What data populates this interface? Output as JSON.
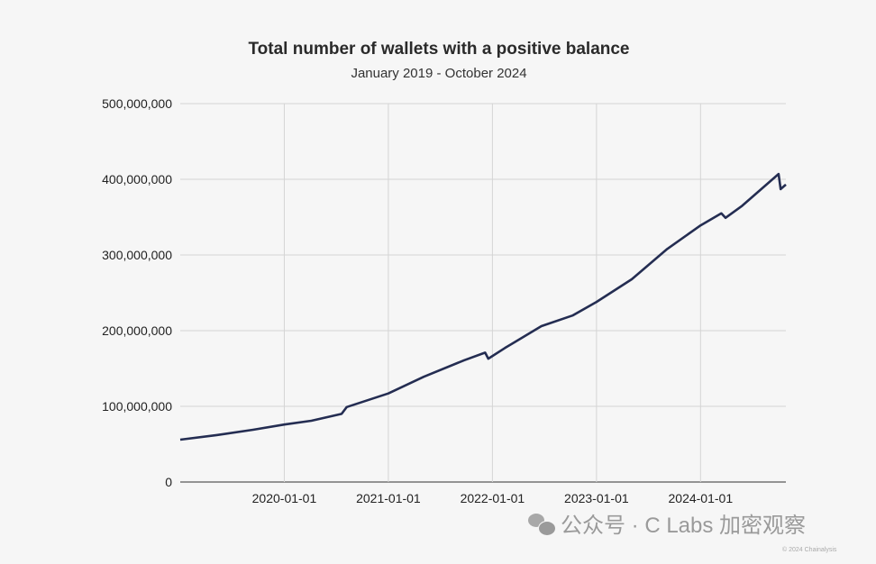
{
  "chart_data": {
    "type": "line",
    "title": "Total number of wallets with a positive balance",
    "subtitle": "January 2019 - October 2024",
    "xlabel": "",
    "ylabel": "",
    "ylim": [
      0,
      500000000
    ],
    "xlim": [
      2019.0,
      2024.82
    ],
    "grid": true,
    "y_ticks": [
      {
        "v": 0,
        "label": "0"
      },
      {
        "v": 100000000,
        "label": "100,000,000"
      },
      {
        "v": 200000000,
        "label": "200,000,000"
      },
      {
        "v": 300000000,
        "label": "300,000,000"
      },
      {
        "v": 400000000,
        "label": "400,000,000"
      },
      {
        "v": 500000000,
        "label": "500,000,000"
      }
    ],
    "x_ticks": [
      {
        "v": 2020.0,
        "label": "2020-01-01"
      },
      {
        "v": 2021.0,
        "label": "2021-01-01"
      },
      {
        "v": 2022.0,
        "label": "2022-01-01"
      },
      {
        "v": 2023.0,
        "label": "2023-01-01"
      },
      {
        "v": 2024.0,
        "label": "2024-01-01"
      }
    ],
    "series": [
      {
        "name": "Wallets with positive balance",
        "color": "#242d52",
        "x": [
          2019.0,
          2019.35,
          2019.7,
          2020.0,
          2020.26,
          2020.55,
          2020.6,
          2021.0,
          2021.34,
          2021.73,
          2021.93,
          2021.96,
          2022.12,
          2022.47,
          2022.77,
          2023.0,
          2023.34,
          2023.68,
          2024.0,
          2024.2,
          2024.24,
          2024.4,
          2024.75,
          2024.77,
          2024.82
        ],
        "y": [
          56000000,
          62000000,
          69000000,
          76000000,
          81000000,
          90000000,
          99000000,
          117000000,
          139000000,
          161000000,
          171000000,
          163000000,
          177000000,
          206000000,
          220000000,
          238000000,
          268000000,
          308000000,
          339000000,
          355000000,
          349000000,
          365000000,
          407000000,
          387000000,
          393000000
        ]
      }
    ]
  },
  "watermark": {
    "text": "公众号 · C Labs 加密观察",
    "copyright": "© 2024 Chainalysis"
  }
}
